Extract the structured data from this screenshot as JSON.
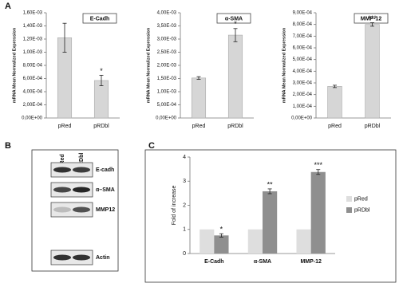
{
  "panel_labels": [
    "A",
    "B",
    "C"
  ],
  "chart_data": [
    {
      "type": "bar",
      "title": "E-Cadh",
      "y_label": "mRNA Mean Normalized Expression",
      "categories": [
        "pRed",
        "pRDbl"
      ],
      "values": [
        0.00122,
        0.00057
      ],
      "errors": [
        0.00022,
        8e-05
      ],
      "significance": [
        null,
        "*"
      ],
      "color": "#d6d6d6",
      "ylim": [
        0,
        0.0016
      ],
      "yticks": [
        {
          "value": 0,
          "label": "0,00E+00"
        },
        {
          "value": 0.0002,
          "label": "2,00E-04"
        },
        {
          "value": 0.0004,
          "label": "4,00E-04"
        },
        {
          "value": 0.0006,
          "label": "6,00E-04"
        },
        {
          "value": 0.0008,
          "label": "8,00E-04"
        },
        {
          "value": 0.001,
          "label": "1,00E-03"
        },
        {
          "value": 0.0012,
          "label": "1,20E-03"
        },
        {
          "value": 0.0014,
          "label": "1,40E-03"
        },
        {
          "value": 0.0016,
          "label": "1,60E-03"
        }
      ]
    },
    {
      "type": "bar",
      "title": "α-SMA",
      "y_label": "mRNA Mean Normalized Expression",
      "categories": [
        "pRed",
        "pRDbl"
      ],
      "values": [
        0.00152,
        0.00315
      ],
      "errors": [
        5e-05,
        0.00025
      ],
      "significance": [
        null,
        "*"
      ],
      "color": "#d6d6d6",
      "ylim": [
        0,
        0.004
      ],
      "yticks": [
        {
          "value": 0,
          "label": "0,00E+00"
        },
        {
          "value": 0.0005,
          "label": "5,00E-04"
        },
        {
          "value": 0.001,
          "label": "1,00E-03"
        },
        {
          "value": 0.0015,
          "label": "1,50E-03"
        },
        {
          "value": 0.002,
          "label": "2,00E-03"
        },
        {
          "value": 0.0025,
          "label": "2,50E-03"
        },
        {
          "value": 0.003,
          "label": "3,00E-03"
        },
        {
          "value": 0.0035,
          "label": "3,50E-03"
        },
        {
          "value": 0.004,
          "label": "4,00E-03"
        }
      ]
    },
    {
      "type": "bar",
      "title": "MMP-12",
      "y_label": "mRNA Mean Normalized Expression",
      "categories": [
        "pRed",
        "pRDbl"
      ],
      "values": [
        0.00027,
        0.0008
      ],
      "errors": [
        1e-05,
        1.5e-05
      ],
      "significance": [
        null,
        "***"
      ],
      "color": "#d6d6d6",
      "ylim": [
        0,
        0.0009
      ],
      "yticks": [
        {
          "value": 0,
          "label": "0,00E+00"
        },
        {
          "value": 0.0001,
          "label": "1,00E-04"
        },
        {
          "value": 0.0002,
          "label": "2,00E-04"
        },
        {
          "value": 0.0003,
          "label": "3,00E-04"
        },
        {
          "value": 0.0004,
          "label": "4,00E-04"
        },
        {
          "value": 0.0005,
          "label": "5,00E-04"
        },
        {
          "value": 0.0006,
          "label": "6,00E-04"
        },
        {
          "value": 0.0007,
          "label": "7,00E-04"
        },
        {
          "value": 0.0008,
          "label": "8,00E-04"
        },
        {
          "value": 0.0009,
          "label": "9,00E-04"
        }
      ]
    },
    {
      "type": "grouped-bar",
      "y_label": "Fold of increase",
      "categories": [
        "E-Cadh",
        "α-SMA",
        "MMP-12"
      ],
      "series": [
        {
          "name": "pRed",
          "color": "#dedede",
          "values": [
            1,
            1,
            1
          ]
        },
        {
          "name": "pRDbl",
          "color": "#8f8f8f",
          "values": [
            0.75,
            2.58,
            3.38
          ],
          "errors": [
            0.07,
            0.1,
            0.1
          ],
          "significance": [
            "*",
            "**",
            "***"
          ]
        }
      ],
      "ylim": [
        0,
        4
      ],
      "yticks": [
        0,
        1,
        2,
        3,
        4
      ],
      "legend": "right"
    }
  ],
  "blot": {
    "lanes": [
      "pRed",
      "pRDbl"
    ],
    "rows": [
      "E-cadh",
      "α–SMA",
      "MMP12",
      "Actin"
    ]
  }
}
